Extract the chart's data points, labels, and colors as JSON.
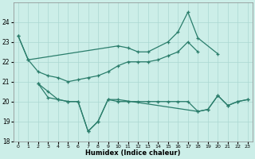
{
  "xlabel": "Humidex (Indice chaleur)",
  "color": "#2a7d6b",
  "bg_color": "#cceee8",
  "grid_color": "#aad8d2",
  "ylim": [
    18,
    25
  ],
  "yticks": [
    18,
    19,
    20,
    21,
    22,
    23,
    24
  ],
  "xticks": [
    0,
    1,
    2,
    3,
    4,
    5,
    6,
    7,
    8,
    9,
    10,
    11,
    12,
    13,
    14,
    15,
    16,
    17,
    18,
    19,
    20,
    21,
    22,
    23
  ],
  "series": {
    "s1_x": [
      0,
      1,
      10,
      11,
      12,
      13,
      15,
      16,
      17,
      18,
      20
    ],
    "s1_y": [
      23.3,
      22.1,
      22.8,
      22.7,
      22.5,
      22.5,
      23.0,
      23.5,
      24.5,
      23.2,
      22.4
    ],
    "s2_x": [
      0,
      1,
      2,
      3,
      4,
      5,
      6,
      7,
      8,
      9,
      10,
      11,
      12,
      13,
      14,
      15,
      16,
      17,
      18
    ],
    "s2_y": [
      23.3,
      22.1,
      21.5,
      21.3,
      21.2,
      21.0,
      21.1,
      21.2,
      21.3,
      21.5,
      21.8,
      22.0,
      22.0,
      22.0,
      22.1,
      22.3,
      22.5,
      23.0,
      22.5
    ],
    "s3_x": [
      2,
      3,
      4,
      5,
      6,
      7,
      8,
      9,
      10,
      18,
      19,
      20,
      21,
      22,
      23
    ],
    "s3_y": [
      20.9,
      20.5,
      20.1,
      20.0,
      20.0,
      18.5,
      19.0,
      20.1,
      20.1,
      19.5,
      19.6,
      20.3,
      19.8,
      20.0,
      20.1
    ],
    "s4_x": [
      2,
      3,
      4,
      5,
      6,
      7,
      8,
      9,
      10,
      11,
      12,
      13,
      14,
      15,
      16,
      17,
      18,
      19,
      20,
      21,
      22,
      23
    ],
    "s4_y": [
      20.9,
      20.2,
      20.1,
      20.0,
      20.0,
      18.5,
      19.0,
      20.1,
      20.0,
      20.0,
      20.0,
      20.0,
      20.0,
      20.0,
      20.0,
      20.0,
      19.5,
      19.6,
      20.3,
      19.8,
      20.0,
      20.1
    ]
  }
}
